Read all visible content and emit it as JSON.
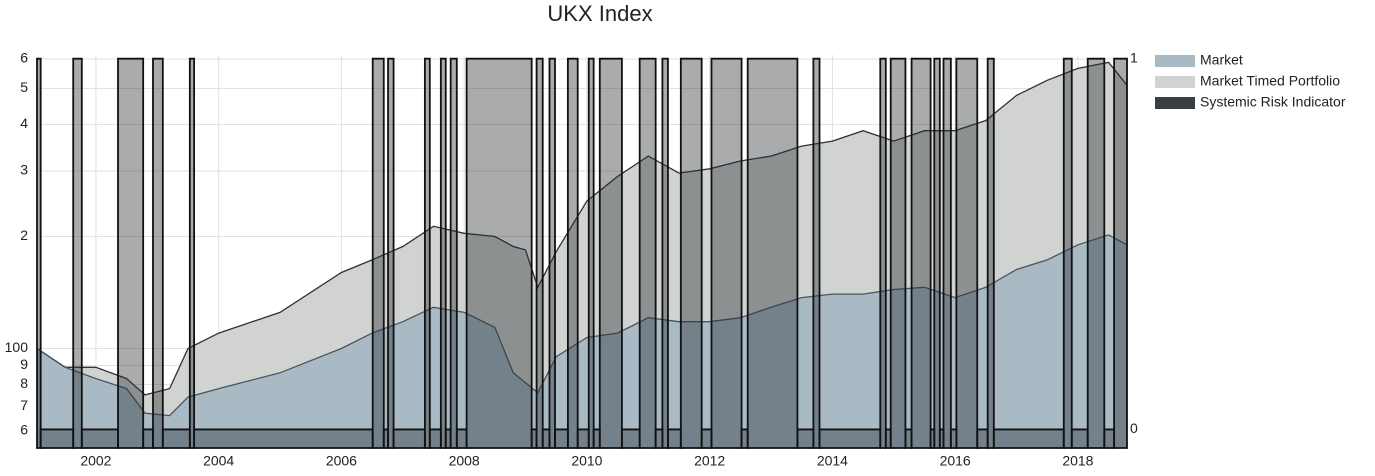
{
  "chart_data": {
    "type": "area-step",
    "title": "UKX Index",
    "xlim": [
      2001.04,
      2018.8
    ],
    "xticks": [
      2002,
      2004,
      2006,
      2008,
      2010,
      2012,
      2014,
      2016,
      2018
    ],
    "ylim": [
      54,
      615
    ],
    "log_y": true,
    "yticks": [
      {
        "value": 60,
        "label": "6"
      },
      {
        "value": 70,
        "label": "7"
      },
      {
        "value": 80,
        "label": "8"
      },
      {
        "value": 90,
        "label": "9"
      },
      100,
      {
        "value": 200,
        "label": "2"
      },
      {
        "value": 300,
        "label": "3"
      },
      {
        "value": 400,
        "label": "4"
      },
      {
        "value": 500,
        "label": "5"
      },
      {
        "value": 600,
        "label": "6"
      }
    ],
    "y2lim": [
      -0.05,
      1.01
    ],
    "y2ticks": [
      0,
      1
    ],
    "grid": true,
    "legend": "top-right",
    "series": [
      {
        "name": "Market",
        "color": "#a9bac5",
        "line_color": "#4a5560",
        "x": [
          2001.04,
          2001.5,
          2002.0,
          2002.5,
          2002.8,
          2003.2,
          2003.5,
          2004.0,
          2005.0,
          2006.0,
          2006.5,
          2007.0,
          2007.5,
          2008.0,
          2008.5,
          2008.8,
          2009.2,
          2009.5,
          2010.0,
          2010.5,
          2011.0,
          2011.5,
          2012.0,
          2012.5,
          2013.0,
          2013.5,
          2014.0,
          2014.5,
          2015.0,
          2015.5,
          2016.0,
          2016.5,
          2017.0,
          2017.5,
          2018.0,
          2018.5,
          2018.8
        ],
        "values": [
          100,
          89,
          83,
          78,
          67,
          66,
          74,
          78,
          86,
          100,
          110,
          118,
          129,
          125,
          114,
          86,
          76,
          95,
          107,
          110,
          121,
          118,
          118,
          121,
          129,
          137,
          140,
          140,
          144,
          146,
          137,
          146,
          163,
          173,
          190,
          202,
          190
        ]
      },
      {
        "name": "Market Timed Portfolio",
        "color": "#d0d3d0",
        "line_color": "#2e3235",
        "x": [
          2001.04,
          2001.5,
          2002.0,
          2002.5,
          2002.8,
          2003.2,
          2003.5,
          2004.0,
          2005.0,
          2006.0,
          2006.5,
          2007.0,
          2007.5,
          2008.0,
          2008.5,
          2008.8,
          2009.0,
          2009.2,
          2009.5,
          2010.0,
          2010.5,
          2011.0,
          2011.5,
          2012.0,
          2012.5,
          2013.0,
          2013.5,
          2014.0,
          2014.5,
          2015.0,
          2015.5,
          2016.0,
          2016.5,
          2017.0,
          2017.5,
          2018.0,
          2018.5,
          2018.8
        ],
        "values": [
          100,
          89,
          89,
          83,
          75,
          78,
          100,
          110,
          125,
          160,
          173,
          188,
          213,
          204,
          200,
          188,
          184,
          146,
          182,
          249,
          290,
          329,
          296,
          304,
          319,
          329,
          350,
          361,
          385,
          361,
          385,
          385,
          410,
          479,
          526,
          566,
          588,
          510
        ]
      },
      {
        "name": "Systemic Risk Indicator",
        "color": "#3a3f44",
        "axis": "y2",
        "x": [
          2001.04,
          2001.1,
          2001.63,
          2001.77,
          2002.36,
          2002.77,
          2002.93,
          2003.09,
          2003.53,
          2003.6,
          2006.51,
          2006.69,
          2006.76,
          2006.85,
          2007.36,
          2007.44,
          2007.62,
          2007.7,
          2007.78,
          2007.88,
          2008.04,
          2009.1,
          2009.18,
          2009.28,
          2009.39,
          2009.48,
          2009.69,
          2009.85,
          2010.03,
          2010.11,
          2010.21,
          2010.57,
          2010.86,
          2011.12,
          2011.23,
          2011.32,
          2011.53,
          2011.87,
          2012.03,
          2012.52,
          2012.62,
          2013.43,
          2013.69,
          2013.79,
          2014.78,
          2014.87,
          2014.95,
          2015.19,
          2015.29,
          2015.6,
          2015.66,
          2015.75,
          2015.81,
          2015.93,
          2016.02,
          2016.36,
          2016.53,
          2016.63,
          2017.77,
          2017.9,
          2018.16,
          2018.43,
          2018.59
        ],
        "values": [
          1,
          0,
          1,
          0,
          1,
          0,
          1,
          0,
          1,
          0,
          1,
          0,
          1,
          0,
          1,
          0,
          1,
          0,
          1,
          0,
          1,
          0,
          1,
          0,
          1,
          0,
          1,
          0,
          1,
          0,
          1,
          0,
          1,
          0,
          1,
          0,
          1,
          0,
          1,
          0,
          1,
          0,
          1,
          0,
          1,
          0,
          1,
          0,
          1,
          0,
          1,
          0,
          1,
          0,
          1,
          0,
          1,
          0,
          1,
          0,
          1,
          0,
          1
        ]
      }
    ]
  }
}
